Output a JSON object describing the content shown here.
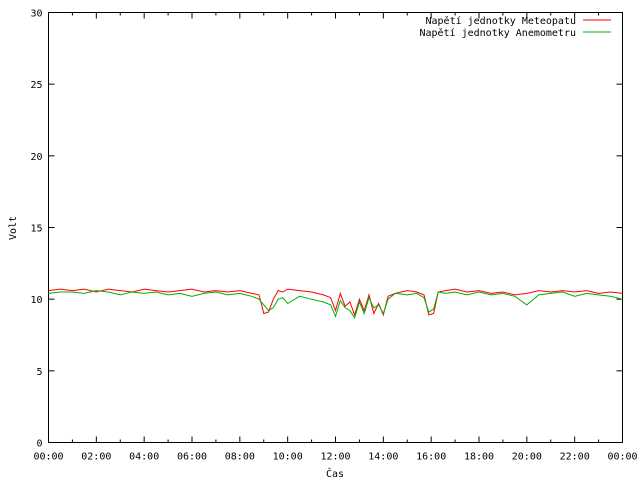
{
  "chart_data": {
    "type": "line",
    "title": "",
    "xlabel": "Čas",
    "ylabel": "Volt",
    "xlim": [
      0,
      24
    ],
    "ylim": [
      0,
      30
    ],
    "x_ticks": [
      "00:00",
      "02:00",
      "04:00",
      "06:00",
      "08:00",
      "10:00",
      "12:00",
      "14:00",
      "16:00",
      "18:00",
      "20:00",
      "22:00",
      "00:00"
    ],
    "y_ticks": [
      "0",
      "5",
      "10",
      "15",
      "20",
      "25",
      "30"
    ],
    "legend_position": "top-right",
    "grid": false,
    "series": [
      {
        "name": "Napětí jednotky Meteopatu",
        "color": "#ff0000",
        "x": [
          0,
          0.5,
          1,
          1.5,
          2,
          2.5,
          3,
          3.5,
          4,
          4.5,
          5,
          5.5,
          6,
          6.5,
          7,
          7.5,
          8,
          8.5,
          8.8,
          9.0,
          9.2,
          9.4,
          9.6,
          9.8,
          10,
          10.5,
          11,
          11.5,
          11.8,
          12.0,
          12.2,
          12.4,
          12.6,
          12.8,
          13.0,
          13.2,
          13.4,
          13.6,
          13.8,
          14.0,
          14.2,
          14.5,
          15,
          15.4,
          15.7,
          15.9,
          16.1,
          16.3,
          16.6,
          17,
          17.5,
          18,
          18.5,
          19,
          19.5,
          20,
          20.5,
          21,
          21.5,
          22,
          22.5,
          23,
          23.5,
          24
        ],
        "y": [
          10.6,
          10.7,
          10.6,
          10.7,
          10.5,
          10.7,
          10.6,
          10.5,
          10.7,
          10.6,
          10.5,
          10.6,
          10.7,
          10.5,
          10.6,
          10.5,
          10.6,
          10.4,
          10.3,
          9.0,
          9.1,
          10.0,
          10.6,
          10.5,
          10.7,
          10.6,
          10.5,
          10.3,
          10.1,
          9.2,
          10.4,
          9.5,
          9.8,
          8.9,
          10.0,
          9.2,
          10.3,
          9.0,
          9.7,
          8.9,
          10.2,
          10.4,
          10.6,
          10.5,
          10.3,
          8.9,
          9.0,
          10.5,
          10.6,
          10.7,
          10.5,
          10.6,
          10.4,
          10.5,
          10.3,
          10.4,
          10.6,
          10.5,
          10.6,
          10.5,
          10.6,
          10.4,
          10.5,
          10.4
        ]
      },
      {
        "name": "Napětí jednotky Anemometru",
        "color": "#00b000",
        "x": [
          0,
          0.5,
          1,
          1.5,
          2,
          2.5,
          3,
          3.5,
          4,
          4.5,
          5,
          5.5,
          6,
          6.5,
          7,
          7.5,
          8,
          8.5,
          8.8,
          9.0,
          9.2,
          9.4,
          9.6,
          9.8,
          10,
          10.5,
          11,
          11.5,
          11.8,
          12.0,
          12.2,
          12.4,
          12.6,
          12.8,
          13.0,
          13.2,
          13.4,
          13.6,
          13.8,
          14.0,
          14.2,
          14.5,
          15,
          15.4,
          15.7,
          15.9,
          16.1,
          16.3,
          16.6,
          17,
          17.5,
          18,
          18.5,
          19,
          19.5,
          20,
          20.5,
          21,
          21.5,
          22,
          22.5,
          23,
          23.5,
          24
        ],
        "y": [
          10.4,
          10.5,
          10.5,
          10.4,
          10.6,
          10.5,
          10.3,
          10.5,
          10.4,
          10.5,
          10.3,
          10.4,
          10.2,
          10.4,
          10.5,
          10.3,
          10.4,
          10.2,
          10.0,
          9.6,
          9.2,
          9.4,
          10.0,
          10.1,
          9.7,
          10.2,
          10.0,
          9.8,
          9.6,
          8.8,
          9.9,
          9.4,
          9.2,
          8.7,
          9.8,
          9.0,
          10.1,
          9.4,
          9.6,
          9.0,
          10.0,
          10.4,
          10.3,
          10.4,
          10.1,
          9.1,
          9.3,
          10.5,
          10.4,
          10.5,
          10.3,
          10.5,
          10.3,
          10.4,
          10.2,
          9.6,
          10.3,
          10.4,
          10.5,
          10.2,
          10.4,
          10.3,
          10.2,
          10.0
        ]
      }
    ]
  }
}
